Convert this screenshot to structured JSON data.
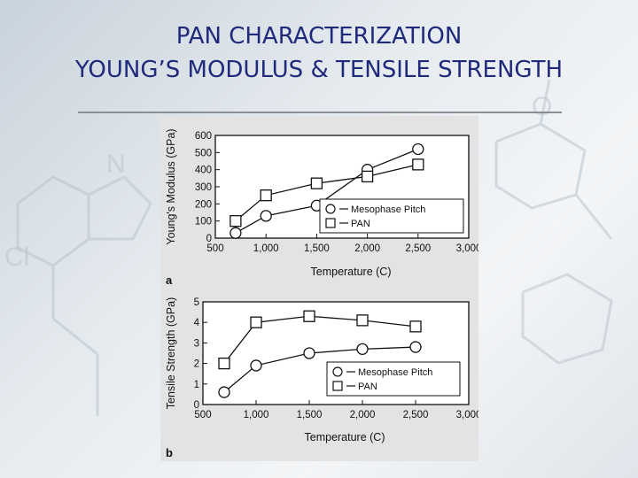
{
  "slide": {
    "title_line1": "PAN CHARACTERIZATION",
    "title_line2": "YOUNG’S MODULUS & TENSILE STRENGTH"
  },
  "chart_data": [
    {
      "type": "line",
      "panel_label": "a",
      "xlabel": "Temperature (C)",
      "ylabel": "Young's Modulus (GPa)",
      "xlim": [
        500,
        3000
      ],
      "ylim": [
        0,
        600
      ],
      "x_ticks": [
        "500",
        "1,000",
        "1,500",
        "2,000",
        "2,500",
        "3,000"
      ],
      "x_tick_values": [
        500,
        1000,
        1500,
        2000,
        2500,
        3000
      ],
      "y_ticks": [
        "0",
        "100",
        "200",
        "300",
        "400",
        "500",
        "600"
      ],
      "y_tick_values": [
        0,
        100,
        200,
        300,
        400,
        500,
        600
      ],
      "grid": false,
      "legend_position": "right",
      "series": [
        {
          "name": "Mesophase Pitch",
          "marker": "circle",
          "x": [
            700,
            1000,
            1500,
            2000,
            2500
          ],
          "y": [
            30,
            130,
            190,
            400,
            520
          ]
        },
        {
          "name": "PAN",
          "marker": "square",
          "x": [
            700,
            1000,
            1500,
            2000,
            2500
          ],
          "y": [
            100,
            250,
            320,
            360,
            430
          ]
        }
      ]
    },
    {
      "type": "line",
      "panel_label": "b",
      "xlabel": "Temperature (C)",
      "ylabel": "Tensile Strength (GPa)",
      "xlim": [
        500,
        3000
      ],
      "ylim": [
        0,
        5
      ],
      "x_ticks": [
        "500",
        "1,000",
        "1,500",
        "2,000",
        "2,500",
        "3,000"
      ],
      "x_tick_values": [
        500,
        1000,
        1500,
        2000,
        2500,
        3000
      ],
      "y_ticks": [
        "0",
        "1",
        "2",
        "3",
        "4",
        "5"
      ],
      "y_tick_values": [
        0,
        1,
        2,
        3,
        4,
        5
      ],
      "grid": false,
      "legend_position": "bottom-right",
      "series": [
        {
          "name": "Mesophase Pitch",
          "marker": "circle",
          "x": [
            700,
            1000,
            1500,
            2000,
            2500
          ],
          "y": [
            0.6,
            1.9,
            2.5,
            2.7,
            2.8
          ]
        },
        {
          "name": "PAN",
          "marker": "square",
          "x": [
            700,
            1000,
            1500,
            2000,
            2500
          ],
          "y": [
            2.0,
            4.0,
            4.3,
            4.1,
            3.8
          ]
        }
      ]
    }
  ]
}
